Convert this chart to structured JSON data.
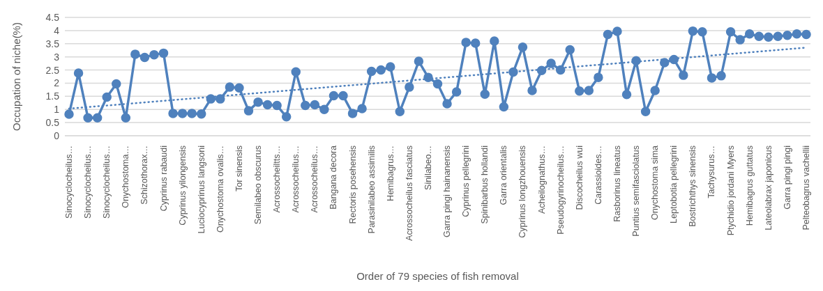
{
  "chart_data": {
    "type": "line",
    "xlabel": "Order of 79 species of fish removal",
    "ylabel": "Occupation of niche(%)",
    "categories": [
      "Sinocyclocheilus…",
      null,
      "Sinocyclocheilus…",
      null,
      "Sinocyclocheilus…",
      null,
      "Onychostoma…",
      null,
      "Schizothorax…",
      null,
      "Cyprinus rabaudi",
      null,
      "Cyprinus yilongensis",
      null,
      "Luciocyprinus langsoni",
      null,
      "Onychostoma ovalis…",
      null,
      "Tor sinensis",
      null,
      "Semilabeo obscurus",
      null,
      "Acrossocheiltts…",
      null,
      "Acrossocheilus…",
      null,
      "Acrossocheilus…",
      null,
      "Bangana decora",
      null,
      "Rectoris posehensis",
      null,
      "Parasinilabeo assimilis",
      null,
      "Hemibagrus…",
      null,
      "Acrossocheilus fasciatus",
      null,
      "Sinilabeo…",
      null,
      "Garra pingi hainanensis",
      null,
      "Cyprinus pellegrini",
      null,
      "Spinibarbus hollandi",
      null,
      "Garra orientalis",
      null,
      "Cyprinus longzhouensis",
      null,
      "Acheilognathus…",
      null,
      "Pseudogyrinocheilus…",
      null,
      "Discocheilus wui",
      null,
      "Carassioides…",
      null,
      "Rasborinus lineatus",
      null,
      "Puntius semifasciolatus",
      null,
      "Onychostoma sima",
      null,
      "Leptobotia pellegrini",
      null,
      "Bostrichthys sinensis",
      null,
      "Tachysurus…",
      null,
      "Ptychidio jordani Myers",
      null,
      "Hemibagrus guttatus",
      null,
      "Lateolabrax japonicus",
      null,
      "Garra pingi pingi",
      null,
      "Pelteobagrus vachellii"
    ],
    "series": [
      {
        "color": "#4f81bd",
        "marker": "circle",
        "line_style": "solid",
        "values": [
          0.82,
          2.38,
          0.68,
          0.68,
          1.47,
          1.97,
          0.68,
          3.1,
          2.98,
          3.08,
          3.14,
          0.85,
          0.85,
          0.85,
          0.83,
          1.4,
          1.4,
          1.85,
          1.82,
          0.95,
          1.28,
          1.18,
          1.15,
          0.72,
          2.43,
          1.15,
          1.18,
          1.0,
          1.52,
          1.52,
          0.85,
          1.03,
          2.45,
          2.5,
          2.62,
          0.92,
          1.85,
          2.83,
          2.22,
          1.97,
          1.22,
          1.67,
          3.55,
          3.52,
          1.58,
          3.6,
          1.1,
          2.42,
          3.37,
          1.72,
          2.48,
          2.75,
          2.5,
          3.27,
          1.7,
          1.72,
          2.22,
          3.85,
          3.97,
          1.57,
          2.85,
          0.92,
          1.72,
          2.78,
          2.9,
          2.3,
          3.98,
          3.95,
          2.2,
          2.28,
          3.95,
          3.65,
          3.87,
          3.78,
          3.75,
          3.78,
          3.82,
          3.87,
          3.85
        ]
      },
      {
        "type": "line",
        "color": "#4f81bd",
        "marker": "none",
        "line_style": "dotted",
        "x": [
          "Sinocyclocheilus…",
          "Pelteobagrus vachellii"
        ],
        "values": [
          1.03,
          3.35
        ]
      }
    ],
    "ylim": [
      0,
      4.5
    ],
    "yticks": [
      0,
      0.5,
      1,
      1.5,
      2,
      2.5,
      3,
      3.5,
      4,
      4.5
    ],
    "grid": "y",
    "legend": false
  }
}
